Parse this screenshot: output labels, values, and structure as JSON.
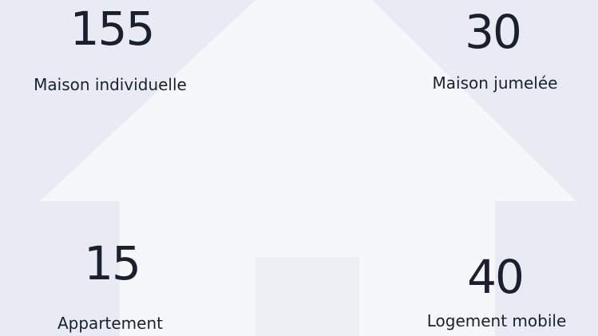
{
  "items": [
    {
      "value": 155,
      "label": "Maison individuelle"
    },
    {
      "value": 30,
      "label": "Maison jumelée"
    },
    {
      "value": 15,
      "label": "Appartement"
    },
    {
      "value": 40,
      "label": "Logement mobile"
    }
  ]
}
